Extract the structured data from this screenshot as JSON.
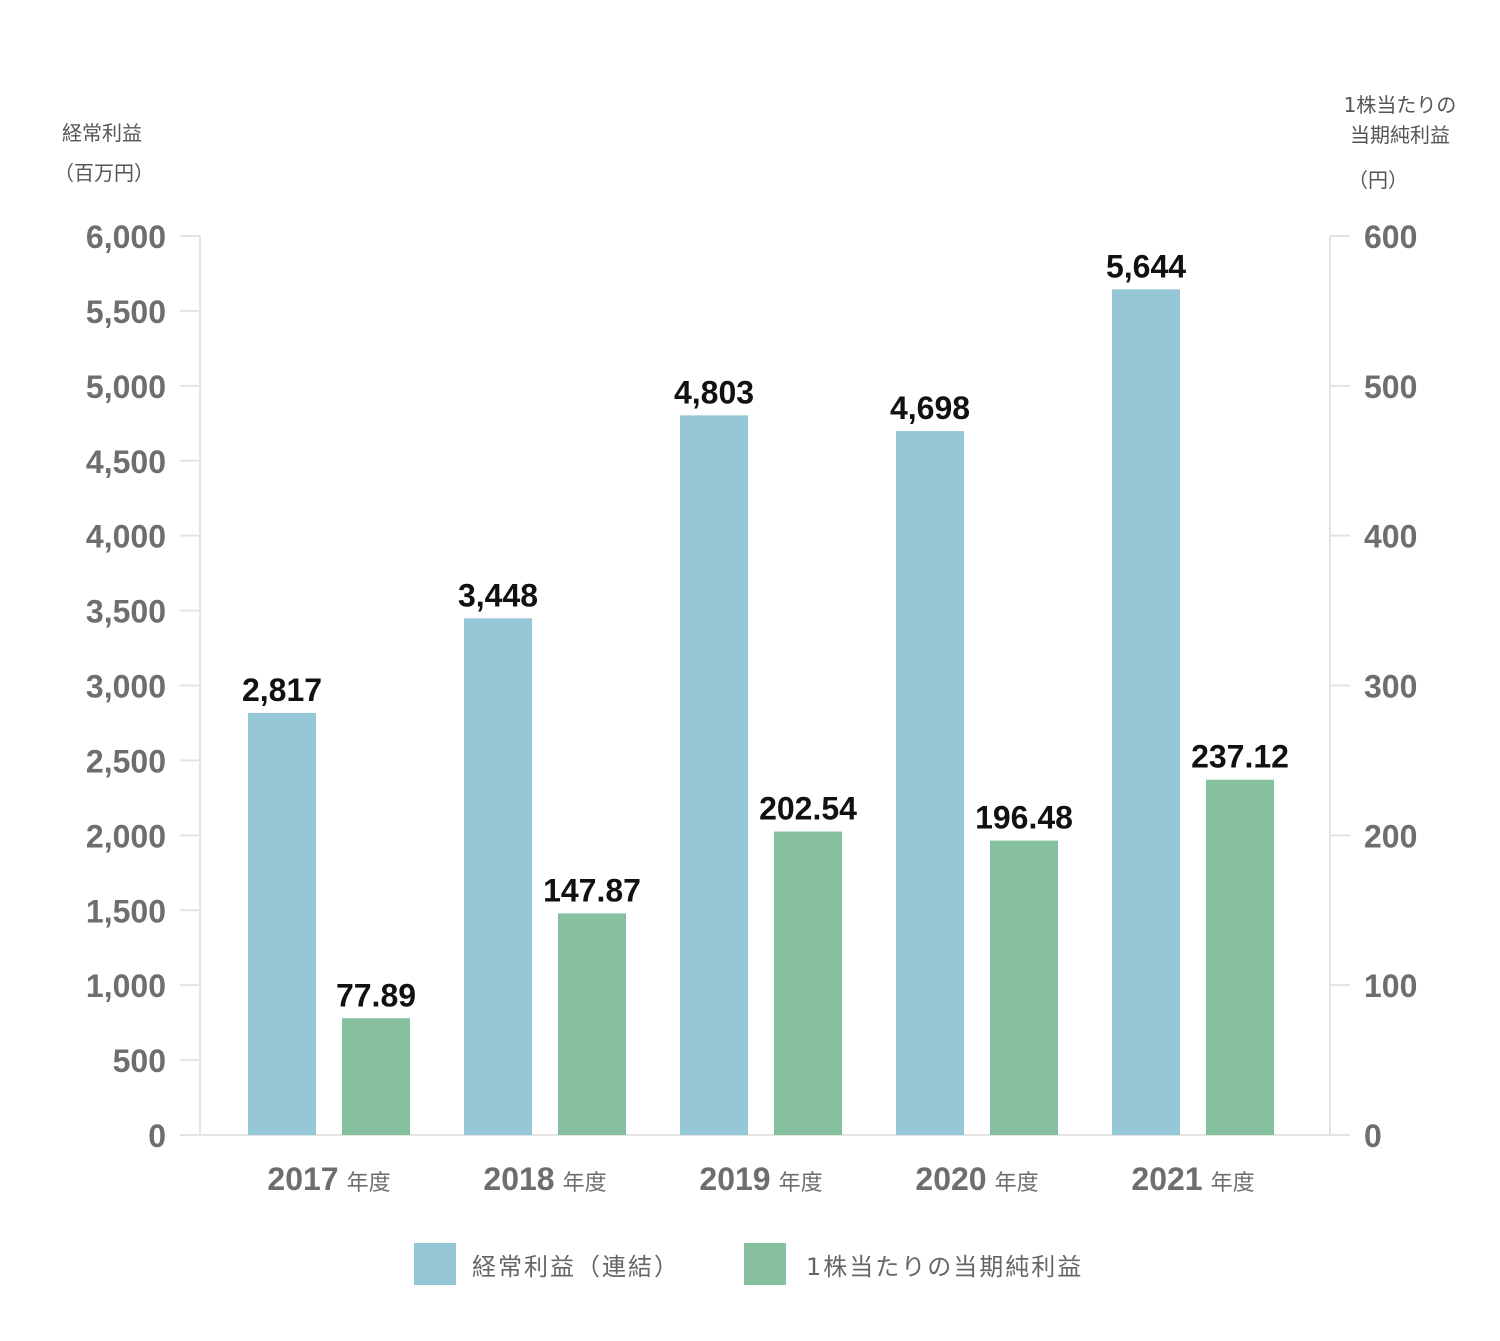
{
  "chart_data": {
    "type": "bar",
    "title": "",
    "left_axis": {
      "title_line1": "経常利益",
      "title_line2": "（百万円）",
      "ylim": [
        0,
        6000
      ],
      "ticks": [
        "0",
        "500",
        "1,000",
        "1,500",
        "2,000",
        "2,500",
        "3,000",
        "3,500",
        "4,000",
        "4,500",
        "5,000",
        "5,500",
        "6,000"
      ],
      "tick_values": [
        0,
        500,
        1000,
        1500,
        2000,
        2500,
        3000,
        3500,
        4000,
        4500,
        5000,
        5500,
        6000
      ]
    },
    "right_axis": {
      "title_line1": "1株当たりの",
      "title_line2": "当期純利益",
      "title_line3": "（円）",
      "ylim": [
        0,
        600
      ],
      "ticks": [
        "0",
        "100",
        "200",
        "300",
        "400",
        "500",
        "600"
      ],
      "tick_values": [
        0,
        100,
        200,
        300,
        400,
        500,
        600
      ]
    },
    "categories": [
      {
        "year": "2017",
        "suffix": "年度"
      },
      {
        "year": "2018",
        "suffix": "年度"
      },
      {
        "year": "2019",
        "suffix": "年度"
      },
      {
        "year": "2020",
        "suffix": "年度"
      },
      {
        "year": "2021",
        "suffix": "年度"
      }
    ],
    "series": [
      {
        "name": "経常利益（連結）",
        "axis": "left",
        "color": "#95c7d6",
        "values": [
          2817,
          3448,
          4803,
          4698,
          5644
        ],
        "labels": [
          "2,817",
          "3,448",
          "4,803",
          "4,698",
          "5,644"
        ]
      },
      {
        "name": "1株当たりの当期純利益",
        "axis": "right",
        "color": "#86c09f",
        "values": [
          77.89,
          147.87,
          202.54,
          196.48,
          237.12
        ],
        "labels": [
          "77.89",
          "147.87",
          "202.54",
          "196.48",
          "237.12"
        ]
      }
    ],
    "gridlines": false,
    "legend_position": "bottom"
  }
}
